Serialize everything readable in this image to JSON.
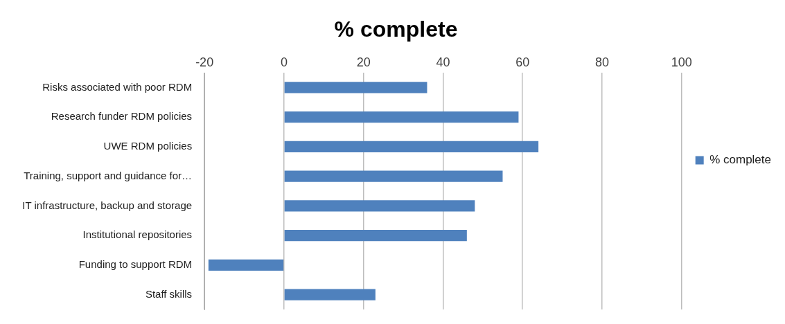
{
  "chart_data": {
    "type": "bar",
    "orientation": "horizontal",
    "title": "% complete",
    "categories": [
      "Risks associated with poor RDM",
      "Research funder RDM policies",
      "UWE RDM policies",
      "Training, support and guidance for…",
      "IT infrastructure, backup and storage",
      "Institutional repositories",
      "Funding to support RDM",
      "Staff skills"
    ],
    "series": [
      {
        "name": "% complete",
        "color": "#4f81bd",
        "values": [
          36,
          59,
          64,
          55,
          48,
          46,
          -19,
          23
        ]
      }
    ],
    "xlim": [
      -20,
      100
    ],
    "xticks": [
      -20,
      0,
      20,
      40,
      60,
      80,
      100
    ],
    "grid": "x",
    "legend": "right"
  }
}
